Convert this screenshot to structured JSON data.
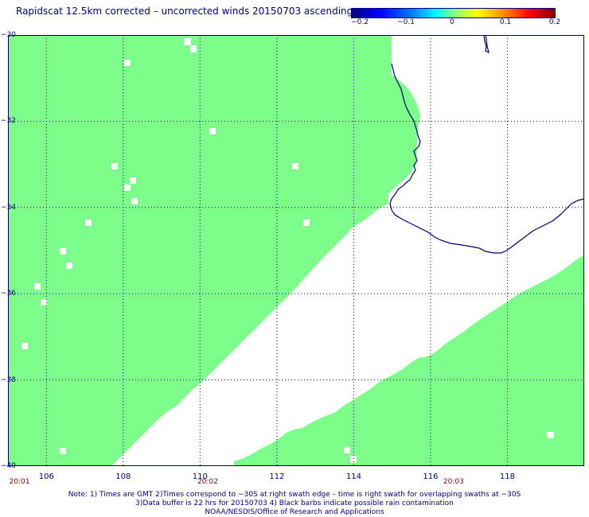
{
  "title": "Rapidscat 12.5km corrected – uncorrected winds 20150703 ascending",
  "colorbar": {
    "ticks": [
      "−0.2",
      "−0.1",
      "0",
      "0.1",
      "0.2"
    ],
    "tick_values": [
      -0.2,
      -0.1,
      0,
      0.1,
      0.2
    ]
  },
  "map": {
    "lon_range": [
      105,
      120
    ],
    "lat_range": [
      -40,
      -30
    ],
    "lon_ticks": [
      106,
      108,
      110,
      112,
      114,
      116,
      118
    ],
    "lat_ticks": [
      -30,
      -32,
      -34,
      -36,
      -38,
      -40
    ],
    "lon_labels": [
      "106",
      "108",
      "110",
      "112",
      "114",
      "116",
      "118"
    ],
    "lat_labels": [
      "−30",
      "−32",
      "−34",
      "−36",
      "−38",
      "−40"
    ],
    "swath_color": "#7dfd8a",
    "coast_color": "#00006e",
    "grid_color": "#000060"
  },
  "time_labels": [
    {
      "text": "20:01",
      "lon": 105.3
    },
    {
      "text": "20:02",
      "lon": 110.2
    },
    {
      "text": "20:03",
      "lon": 116.6
    }
  ],
  "notes": [
    "Note: 1) Times are GMT 2)Times correspond to −30S at right swath edge – time is right swath for overlapping swaths at −30S",
    "3)Data buffer is 22 hrs for 20150703 4) Black barbs indicate possible rain contamination",
    "NOAA/NESDIS/Office of Research and Applications"
  ]
}
